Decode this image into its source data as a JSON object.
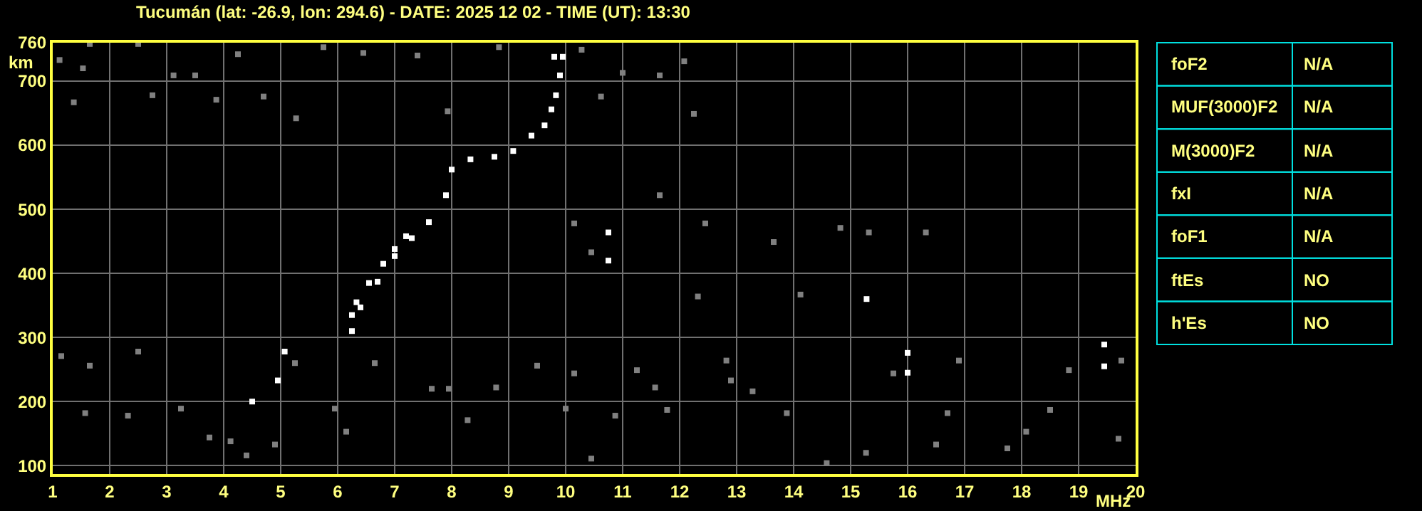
{
  "chart_data": [
    {
      "type": "scatter",
      "title": "Tucumán (lat: -26.9, lon: 294.6) - DATE: 2025 12 02 - TIME (UT): 13:30",
      "xlabel": "MHz",
      "ylabel": "km",
      "xlim": [
        1,
        20
      ],
      "xticks": [
        1,
        2,
        3,
        4,
        5,
        6,
        7,
        8,
        9,
        10,
        11,
        12,
        13,
        14,
        15,
        16,
        17,
        18,
        19,
        20
      ],
      "ylim": [
        87,
        760
      ],
      "yticks": [
        100,
        200,
        300,
        400,
        500,
        600,
        700,
        760
      ],
      "grid": true,
      "marker": "square",
      "series": [
        {
          "color": "#ffffff",
          "x": [
            6.25,
            6.25,
            6.33,
            6.55,
            6.8,
            7.0,
            7.2,
            6.4,
            6.7,
            7.0,
            7.3,
            7.6,
            7.9,
            8.0,
            8.33,
            8.75,
            9.08,
            9.4,
            9.63,
            9.75,
            9.83,
            9.9,
            9.95,
            9.8,
            10.75,
            10.75,
            16.0,
            16.0,
            19.45,
            19.45,
            4.5,
            4.95,
            5.07,
            15.28
          ],
          "values": [
            310,
            335,
            355,
            385,
            415,
            438,
            458,
            347,
            387,
            427,
            455,
            480,
            522,
            562,
            578,
            582,
            591,
            615,
            631,
            656,
            678,
            709,
            738,
            738,
            420,
            464,
            245,
            276,
            255,
            289,
            200,
            233,
            278,
            360
          ]
        },
        {
          "color": "#808080",
          "x": [
            1.12,
            1.65,
            2.5,
            1.53,
            1.37,
            2.75,
            3.12,
            3.5,
            3.87,
            4.25,
            4.7,
            5.27,
            5.75,
            6.45,
            7.4,
            7.93,
            8.83,
            11.0,
            11.65,
            12.08,
            12.25,
            10.28,
            10.62,
            1.15,
            1.65,
            1.57,
            2.32,
            2.5,
            3.25,
            3.75,
            4.12,
            4.4,
            4.9,
            5.25,
            5.95,
            6.15,
            6.65,
            7.65,
            7.95,
            8.28,
            8.78,
            9.5,
            10.0,
            10.15,
            10.45,
            10.87,
            11.25,
            11.57,
            11.78,
            12.9,
            13.28,
            13.88,
            14.58,
            15.27,
            15.75,
            16.5,
            16.7,
            17.75,
            18.08,
            18.5,
            18.83,
            19.75,
            19.7,
            10.15,
            11.65,
            12.45,
            13.65,
            14.82,
            15.32,
            16.32,
            10.45,
            12.32,
            14.12,
            12.82,
            16.9
          ],
          "values": [
            733,
            758,
            758,
            720,
            667,
            678,
            709,
            709,
            671,
            742,
            676,
            642,
            753,
            744,
            740,
            653,
            753,
            713,
            709,
            731,
            649,
            749,
            676,
            271,
            256,
            182,
            178,
            278,
            189,
            144,
            138,
            116,
            133,
            260,
            189,
            153,
            260,
            220,
            220,
            171,
            222,
            256,
            189,
            244,
            111,
            178,
            249,
            222,
            187,
            233,
            216,
            182,
            104,
            120,
            244,
            133,
            182,
            127,
            153,
            187,
            249,
            264,
            142,
            478,
            522,
            478,
            449,
            471,
            464,
            464,
            433,
            364,
            367,
            264,
            264
          ]
        }
      ]
    },
    {
      "type": "other",
      "annotations": [
        "foF2",
        "N/A",
        "MUF(3000)F2",
        "N/A",
        "M(3000)F2",
        "N/A",
        "fxI",
        "N/A",
        "foF1",
        "N/A",
        "ftEs",
        "NO",
        "h'Es",
        "NO"
      ]
    }
  ]
}
